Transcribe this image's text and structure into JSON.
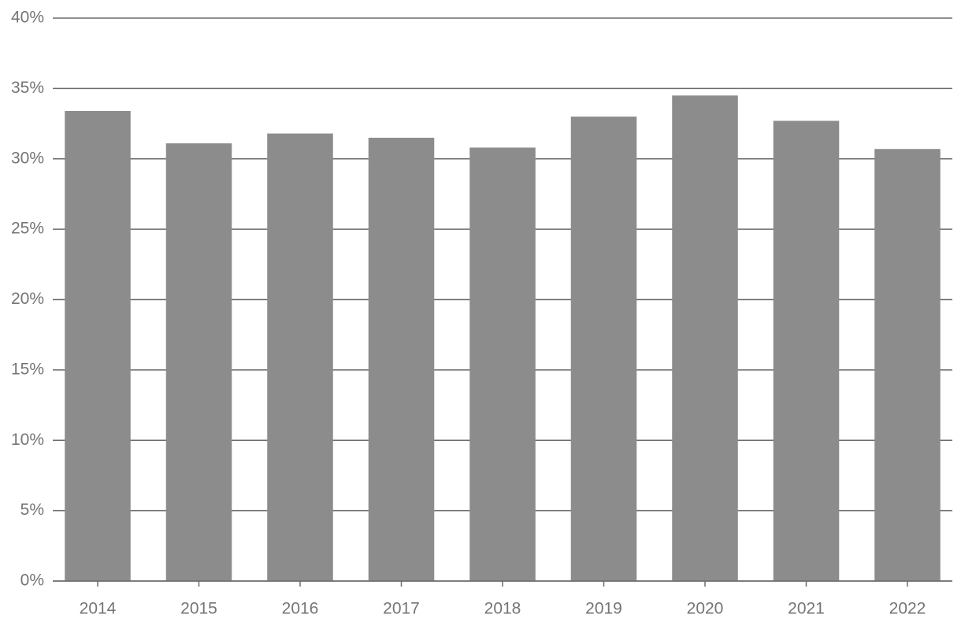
{
  "chart_data": {
    "type": "bar",
    "categories": [
      "2014",
      "2015",
      "2016",
      "2017",
      "2018",
      "2019",
      "2020",
      "2021",
      "2022"
    ],
    "values": [
      33.4,
      31.1,
      31.8,
      31.5,
      30.8,
      33.0,
      34.5,
      32.7,
      30.7
    ],
    "color": "#8c8c8c",
    "ylim": [
      0,
      40
    ],
    "yticks": [
      {
        "value": 0,
        "label": "0%"
      },
      {
        "value": 5,
        "label": "5%"
      },
      {
        "value": 10,
        "label": "10%"
      },
      {
        "value": 15,
        "label": "15%"
      },
      {
        "value": 20,
        "label": "20%"
      },
      {
        "value": 25,
        "label": "25%"
      },
      {
        "value": 30,
        "label": "30%"
      },
      {
        "value": 35,
        "label": "35%"
      },
      {
        "value": 40,
        "label": "40%"
      }
    ],
    "grid": true
  }
}
